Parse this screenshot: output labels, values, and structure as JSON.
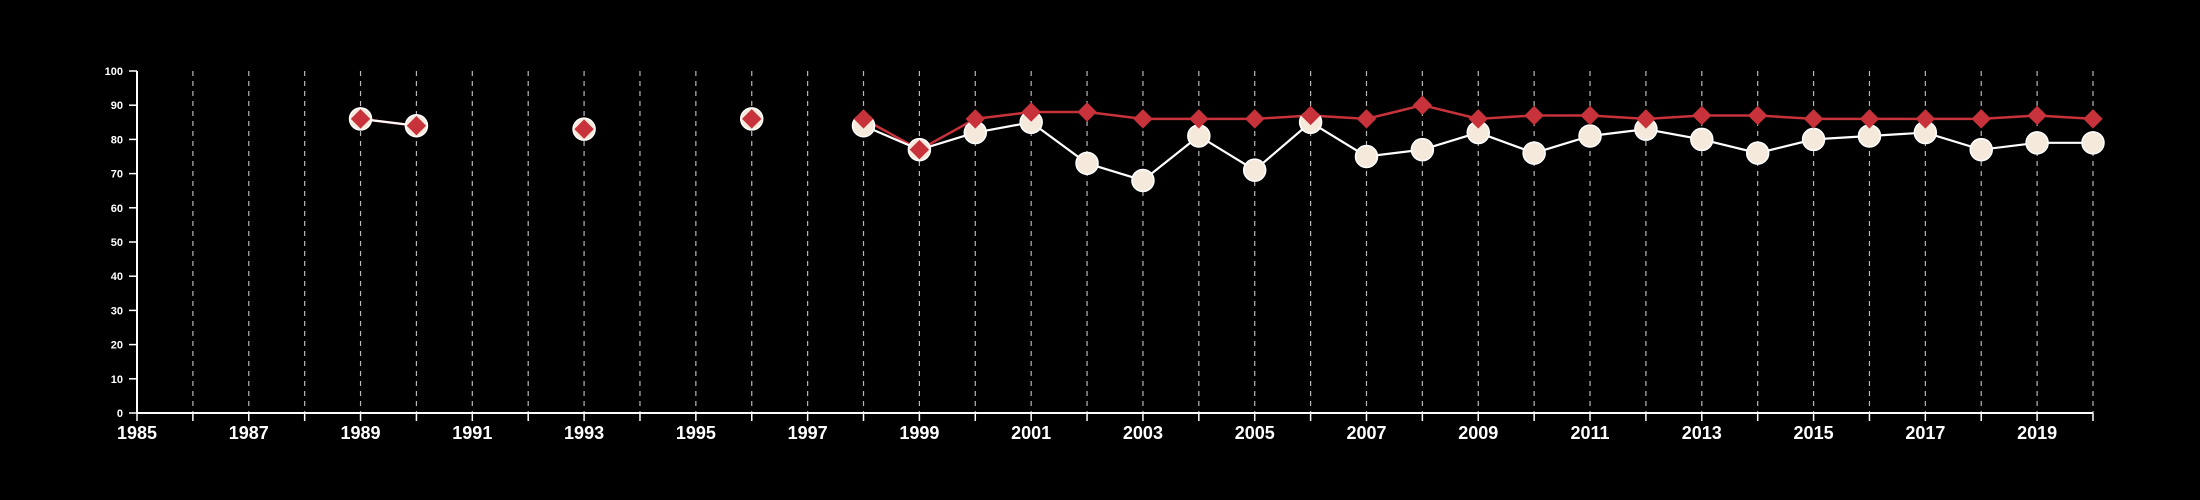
{
  "colors": {
    "background": "#000000",
    "axis": "#ffffff",
    "grid": "#b8b8b8",
    "series_white_fill": "#f5e9dc",
    "series_white_line": "#ffffff",
    "series_red": "#c8323a"
  },
  "chart_data": {
    "type": "line",
    "title": "",
    "xlabel": "",
    "ylabel": "",
    "xlim": [
      1985,
      2020
    ],
    "ylim": [
      0,
      100
    ],
    "x_ticks": [
      1985,
      1986,
      1987,
      1988,
      1989,
      1990,
      1991,
      1992,
      1993,
      1994,
      1995,
      1996,
      1997,
      1998,
      1999,
      2000,
      2001,
      2002,
      2003,
      2004,
      2005,
      2006,
      2007,
      2008,
      2009,
      2010,
      2011,
      2012,
      2013,
      2014,
      2015,
      2016,
      2017,
      2018,
      2019,
      2020
    ],
    "x_tick_labels": [
      "1985",
      "1987",
      "1989",
      "1991",
      "1993",
      "1995",
      "1997",
      "1999",
      "2001",
      "2003",
      "2005",
      "2007",
      "2009",
      "2011",
      "2013",
      "2015",
      "2017",
      "2019"
    ],
    "y_ticks": [
      0,
      10,
      20,
      30,
      40,
      50,
      60,
      70,
      80,
      90,
      100
    ],
    "y_tick_labels": [
      "0",
      "10",
      "20",
      "30",
      "40",
      "50",
      "60",
      "70",
      "80",
      "90",
      "100"
    ],
    "grid": "vertical dashed",
    "legend": "none",
    "series": [
      {
        "marker": "circle",
        "color": "#f5e9dc",
        "points": [
          {
            "x": 1989,
            "y": 86
          },
          {
            "x": 1990,
            "y": 84
          },
          {
            "x": 1993,
            "y": 83
          },
          {
            "x": 1996,
            "y": 86
          },
          {
            "x": 1998,
            "y": 84
          },
          {
            "x": 1999,
            "y": 77
          },
          {
            "x": 2000,
            "y": 82
          },
          {
            "x": 2001,
            "y": 85
          },
          {
            "x": 2002,
            "y": 73
          },
          {
            "x": 2003,
            "y": 68
          },
          {
            "x": 2004,
            "y": 81
          },
          {
            "x": 2005,
            "y": 71
          },
          {
            "x": 2006,
            "y": 85
          },
          {
            "x": 2007,
            "y": 75
          },
          {
            "x": 2008,
            "y": 77
          },
          {
            "x": 2009,
            "y": 82
          },
          {
            "x": 2010,
            "y": 76
          },
          {
            "x": 2011,
            "y": 81
          },
          {
            "x": 2012,
            "y": 83
          },
          {
            "x": 2013,
            "y": 80
          },
          {
            "x": 2014,
            "y": 76
          },
          {
            "x": 2015,
            "y": 80
          },
          {
            "x": 2016,
            "y": 81
          },
          {
            "x": 2017,
            "y": 82
          },
          {
            "x": 2018,
            "y": 77
          },
          {
            "x": 2019,
            "y": 79
          },
          {
            "x": 2020,
            "y": 79
          }
        ]
      },
      {
        "marker": "diamond",
        "color": "#c8323a",
        "points": [
          {
            "x": 1989,
            "y": 86
          },
          {
            "x": 1990,
            "y": 84
          },
          {
            "x": 1993,
            "y": 83
          },
          {
            "x": 1996,
            "y": 86
          },
          {
            "x": 1998,
            "y": 86
          },
          {
            "x": 1999,
            "y": 77
          },
          {
            "x": 2000,
            "y": 86
          },
          {
            "x": 2001,
            "y": 88
          },
          {
            "x": 2002,
            "y": 88
          },
          {
            "x": 2003,
            "y": 86
          },
          {
            "x": 2004,
            "y": 86
          },
          {
            "x": 2005,
            "y": 86
          },
          {
            "x": 2006,
            "y": 87
          },
          {
            "x": 2007,
            "y": 86
          },
          {
            "x": 2008,
            "y": 90
          },
          {
            "x": 2009,
            "y": 86
          },
          {
            "x": 2010,
            "y": 87
          },
          {
            "x": 2011,
            "y": 87
          },
          {
            "x": 2012,
            "y": 86
          },
          {
            "x": 2013,
            "y": 87
          },
          {
            "x": 2014,
            "y": 87
          },
          {
            "x": 2015,
            "y": 86
          },
          {
            "x": 2016,
            "y": 86
          },
          {
            "x": 2017,
            "y": 86
          },
          {
            "x": 2018,
            "y": 86
          },
          {
            "x": 2019,
            "y": 87
          },
          {
            "x": 2020,
            "y": 86
          }
        ]
      }
    ]
  }
}
